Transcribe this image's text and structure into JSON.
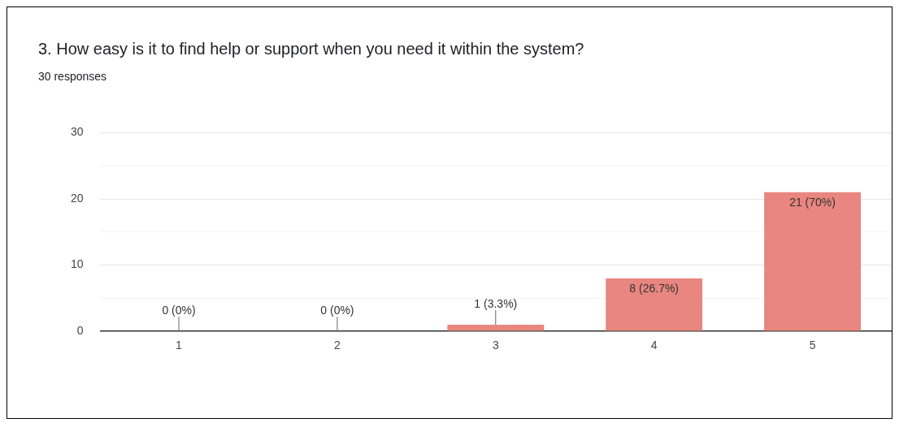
{
  "chart_data": {
    "type": "bar",
    "title": "3.  How easy is it to find help or support when you need it within the system?",
    "subtitle": "30 responses",
    "categories": [
      "1",
      "2",
      "3",
      "4",
      "5"
    ],
    "values": [
      0,
      0,
      1,
      8,
      21
    ],
    "value_labels": [
      "0 (0%)",
      "0 (0%)",
      "1 (3.3%)",
      "8 (26.7%)",
      "21 (70%)"
    ],
    "color": "#e8867f",
    "ylim": [
      0,
      30
    ],
    "yticks": [
      0,
      {
        "value": 5,
        "label": null
      },
      10,
      {
        "value": 15,
        "label": null
      },
      20,
      {
        "value": 25,
        "label": null
      },
      30
    ],
    "grid": "y",
    "legend": false
  }
}
